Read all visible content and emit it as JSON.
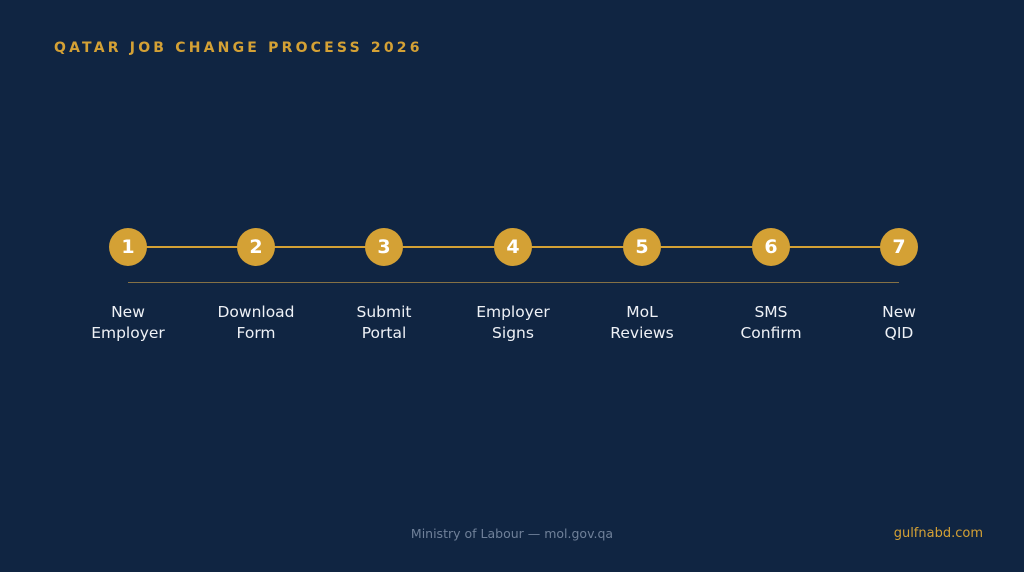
{
  "header": {
    "title": "QATAR JOB CHANGE PROCESS 2026"
  },
  "steps": [
    {
      "number": "1",
      "line1": "New",
      "line2": "Employer"
    },
    {
      "number": "2",
      "line1": "Download",
      "line2": "Form"
    },
    {
      "number": "3",
      "line1": "Submit",
      "line2": "Portal"
    },
    {
      "number": "4",
      "line1": "Employer",
      "line2": "Signs"
    },
    {
      "number": "5",
      "line1": "MoL",
      "line2": "Reviews"
    },
    {
      "number": "6",
      "line1": "SMS",
      "line2": "Confirm"
    },
    {
      "number": "7",
      "line1": "New",
      "line2": "QID"
    }
  ],
  "footer": {
    "source": "Ministry of Labour — mol.gov.qa",
    "site": "gulfnabd.com"
  },
  "colors": {
    "background": "#102542",
    "accent": "#d4a135",
    "text": "#eef1f6",
    "muted": "#6f8099"
  }
}
